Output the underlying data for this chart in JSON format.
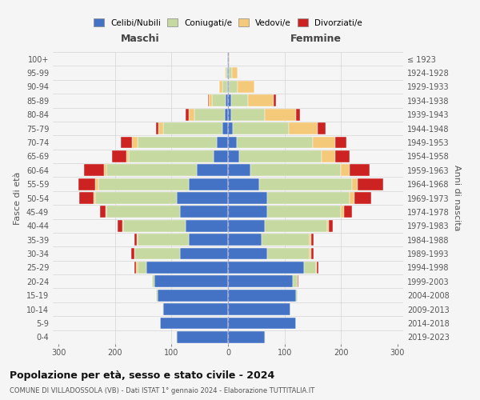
{
  "age_groups": [
    "0-4",
    "5-9",
    "10-14",
    "15-19",
    "20-24",
    "25-29",
    "30-34",
    "35-39",
    "40-44",
    "45-49",
    "50-54",
    "55-59",
    "60-64",
    "65-69",
    "70-74",
    "75-79",
    "80-84",
    "85-89",
    "90-94",
    "95-99",
    "100+"
  ],
  "birth_years": [
    "2019-2023",
    "2014-2018",
    "2009-2013",
    "2004-2008",
    "1999-2003",
    "1994-1998",
    "1989-1993",
    "1984-1988",
    "1979-1983",
    "1974-1978",
    "1969-1973",
    "1964-1968",
    "1959-1963",
    "1954-1958",
    "1949-1953",
    "1944-1948",
    "1939-1943",
    "1934-1938",
    "1929-1933",
    "1924-1928",
    "≤ 1923"
  ],
  "maschi": {
    "celibi": [
      90,
      120,
      115,
      125,
      130,
      145,
      85,
      70,
      75,
      85,
      90,
      70,
      55,
      25,
      20,
      10,
      5,
      4,
      2,
      1,
      1
    ],
    "coniugati": [
      2,
      0,
      1,
      2,
      5,
      15,
      80,
      90,
      110,
      130,
      145,
      160,
      160,
      150,
      140,
      105,
      55,
      25,
      8,
      3,
      1
    ],
    "vedovi": [
      0,
      0,
      0,
      0,
      0,
      3,
      1,
      1,
      2,
      2,
      3,
      5,
      5,
      5,
      10,
      8,
      10,
      5,
      5,
      2,
      0
    ],
    "divorziati": [
      0,
      0,
      0,
      0,
      0,
      3,
      5,
      4,
      8,
      10,
      25,
      30,
      35,
      25,
      20,
      5,
      5,
      2,
      0,
      0,
      0
    ]
  },
  "femmine": {
    "nubili": [
      65,
      120,
      110,
      120,
      115,
      135,
      70,
      60,
      65,
      70,
      70,
      55,
      40,
      20,
      15,
      8,
      5,
      5,
      2,
      2,
      1
    ],
    "coniugate": [
      2,
      0,
      1,
      3,
      8,
      20,
      75,
      85,
      110,
      130,
      145,
      165,
      160,
      145,
      135,
      100,
      60,
      30,
      15,
      5,
      1
    ],
    "vedove": [
      0,
      0,
      0,
      0,
      0,
      2,
      2,
      2,
      3,
      5,
      8,
      10,
      15,
      25,
      40,
      50,
      55,
      45,
      30,
      10,
      1
    ],
    "divorziate": [
      0,
      0,
      0,
      0,
      2,
      3,
      5,
      5,
      8,
      15,
      30,
      45,
      35,
      25,
      20,
      15,
      8,
      5,
      0,
      0,
      0
    ]
  },
  "colors": {
    "celibi": "#4472c4",
    "coniugati": "#c5d9a0",
    "vedovi": "#f5c97a",
    "divorziati": "#cc2222"
  },
  "xlim": 310,
  "title": "Popolazione per età, sesso e stato civile - 2024",
  "subtitle": "COMUNE DI VILLADOSSOLA (VB) - Dati ISTAT 1° gennaio 2024 - Elaborazione TUTTITALIA.IT",
  "ylabel_left": "Fasce di età",
  "ylabel_right": "Anni di nascita",
  "xlabel_left": "Maschi",
  "xlabel_right": "Femmine",
  "legend_labels": [
    "Celibi/Nubili",
    "Coniugati/e",
    "Vedovi/e",
    "Divorziati/e"
  ],
  "background_color": "#f5f5f5",
  "bar_height": 0.85
}
